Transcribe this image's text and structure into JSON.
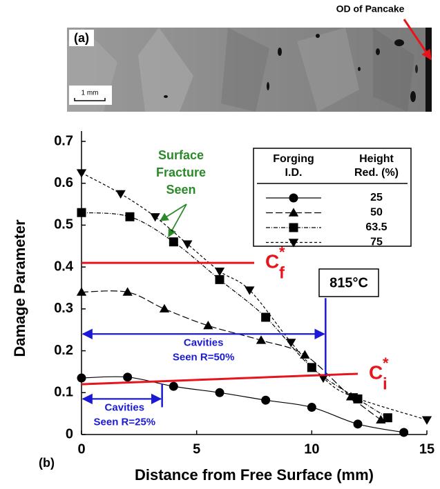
{
  "image_panel": {
    "label": "(a)",
    "scale_bar": "1 mm",
    "annotation": "OD of Pancake"
  },
  "chart_data": {
    "type": "line",
    "panel_label": "(b)",
    "x_label": "Distance from Free Surface (mm)",
    "y_label": "Damage Parameter",
    "xlim": [
      0,
      15
    ],
    "xticks": [
      0,
      5,
      10,
      15
    ],
    "ylim": [
      0,
      0.7
    ],
    "yticks": [
      0,
      0.1,
      0.2,
      0.3,
      0.4,
      0.5,
      0.6,
      0.7
    ],
    "legend_headers": [
      [
        "Forging",
        "I.D."
      ],
      [
        "Height",
        "Red. (%)"
      ]
    ],
    "series": [
      {
        "name": "25",
        "color": "#000000",
        "marker": "circle",
        "dash": "none",
        "x": [
          0,
          2,
          4,
          6,
          8,
          10,
          12,
          14
        ],
        "values": [
          0.135,
          0.137,
          0.115,
          0.1,
          0.082,
          0.065,
          0.025,
          0.005
        ]
      },
      {
        "name": "50",
        "color": "#000000",
        "marker": "triangle-up",
        "dash": "10 4",
        "x": [
          0,
          2,
          3.6,
          5.5,
          7.8,
          9.7,
          11.7,
          13
        ],
        "values": [
          0.34,
          0.34,
          0.3,
          0.26,
          0.225,
          0.19,
          0.09,
          0.035
        ]
      },
      {
        "name": "63.5",
        "color": "#000000",
        "marker": "square",
        "dash": "6 2 1 2",
        "x": [
          0,
          2.1,
          4,
          6,
          8,
          10,
          12,
          13.3
        ],
        "values": [
          0.53,
          0.52,
          0.46,
          0.37,
          0.28,
          0.16,
          0.085,
          0.04
        ]
      },
      {
        "name": "75",
        "color": "#000000",
        "marker": "triangle-down",
        "dash": "4 3",
        "x": [
          0,
          1.7,
          3.2,
          4.6,
          6,
          7.3,
          9.1,
          10.5,
          11.8,
          15
        ],
        "values": [
          0.625,
          0.575,
          0.52,
          0.455,
          0.39,
          0.345,
          0.22,
          0.135,
          0.09,
          0.035
        ]
      }
    ],
    "reference_lines": [
      {
        "label": {
          "base": "C",
          "sup": "*",
          "sub": "f"
        },
        "color": "#e8141c",
        "x": [
          0,
          7.5
        ],
        "values": [
          0.41,
          0.41
        ]
      },
      {
        "label": {
          "base": "C",
          "sup": "*",
          "sub": "i"
        },
        "color": "#e8141c",
        "x": [
          0,
          12
        ],
        "values": [
          0.12,
          0.145
        ]
      }
    ],
    "cavity_spans": [
      {
        "text": [
          "Cavities",
          "Seen R=50%"
        ],
        "color": "#1a1ad6",
        "x": [
          0,
          10.6
        ],
        "level": 0.24
      },
      {
        "text": [
          "Cavities",
          "Seen R=25%"
        ],
        "color": "#1a1ad6",
        "x": [
          0,
          3.5
        ],
        "level": 0.085
      }
    ],
    "fracture_note": [
      "Surface",
      "Fracture",
      "Seen"
    ],
    "temperature": "815°C"
  }
}
